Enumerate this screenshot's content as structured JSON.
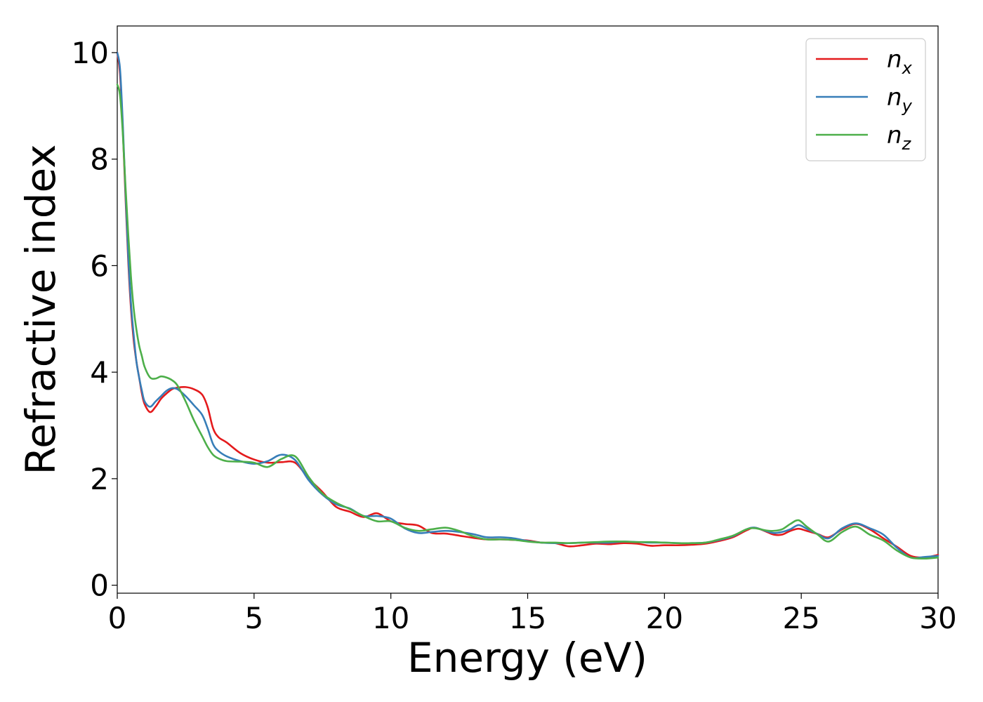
{
  "chart_data": {
    "type": "line",
    "title": "",
    "xlabel": "Energy (eV)",
    "ylabel": "Refractive index",
    "xlim": [
      0,
      30
    ],
    "ylim": [
      -0.15,
      10.5
    ],
    "xticks": [
      0,
      5,
      10,
      15,
      20,
      25,
      30
    ],
    "yticks": [
      0,
      2,
      4,
      6,
      8,
      10
    ],
    "grid": false,
    "legend_position": "top-right",
    "series": [
      {
        "name": "n",
        "subscript": "x",
        "color": "#e41a1c",
        "x": [
          0,
          0.1,
          0.2,
          0.3,
          0.4,
          0.5,
          0.6,
          0.7,
          0.8,
          0.9,
          1.0,
          1.2,
          1.4,
          1.6,
          1.8,
          2.0,
          2.2,
          2.5,
          2.8,
          3.1,
          3.3,
          3.5,
          3.7,
          4.0,
          4.5,
          5.0,
          5.5,
          6.0,
          6.5,
          7.0,
          7.5,
          8.0,
          8.5,
          9.0,
          9.5,
          10.0,
          10.5,
          11.0,
          11.5,
          12.0,
          12.5,
          13.0,
          13.5,
          14.0,
          14.5,
          15.0,
          15.5,
          16.0,
          16.5,
          17.0,
          17.5,
          18.0,
          18.5,
          19.0,
          19.5,
          20.0,
          20.5,
          21.0,
          21.5,
          22.0,
          22.5,
          23.0,
          23.3,
          23.7,
          24.0,
          24.3,
          24.6,
          24.9,
          25.2,
          25.6,
          26.0,
          26.5,
          27.0,
          27.5,
          28.0,
          28.5,
          29.0,
          29.5,
          30.0
        ],
        "y": [
          10.0,
          9.6,
          8.6,
          7.3,
          6.1,
          5.2,
          4.6,
          4.2,
          3.9,
          3.6,
          3.4,
          3.25,
          3.35,
          3.5,
          3.6,
          3.68,
          3.71,
          3.72,
          3.68,
          3.58,
          3.35,
          2.95,
          2.78,
          2.68,
          2.48,
          2.36,
          2.3,
          2.31,
          2.3,
          2.0,
          1.75,
          1.47,
          1.38,
          1.28,
          1.35,
          1.2,
          1.15,
          1.12,
          0.98,
          0.97,
          0.93,
          0.89,
          0.86,
          0.86,
          0.85,
          0.84,
          0.8,
          0.79,
          0.73,
          0.75,
          0.78,
          0.77,
          0.79,
          0.78,
          0.74,
          0.75,
          0.75,
          0.76,
          0.78,
          0.83,
          0.9,
          1.03,
          1.08,
          1.01,
          0.95,
          0.95,
          1.02,
          1.06,
          1.02,
          0.96,
          0.9,
          1.05,
          1.15,
          1.05,
          0.88,
          0.72,
          0.55,
          0.52,
          0.57
        ]
      },
      {
        "name": "n",
        "subscript": "y",
        "color": "#377eb8",
        "x": [
          0,
          0.1,
          0.2,
          0.3,
          0.4,
          0.5,
          0.6,
          0.7,
          0.8,
          0.9,
          1.0,
          1.2,
          1.4,
          1.6,
          1.8,
          2.0,
          2.2,
          2.5,
          2.8,
          3.1,
          3.3,
          3.5,
          3.7,
          4.0,
          4.5,
          5.0,
          5.5,
          6.0,
          6.5,
          7.0,
          7.5,
          8.0,
          8.5,
          9.0,
          9.5,
          10.0,
          10.5,
          11.0,
          11.5,
          12.0,
          12.5,
          13.0,
          13.5,
          14.0,
          14.5,
          15.0,
          15.5,
          16.0,
          16.5,
          17.0,
          17.5,
          18.0,
          18.5,
          19.0,
          19.5,
          20.0,
          20.5,
          21.0,
          21.5,
          22.0,
          22.5,
          23.0,
          23.3,
          23.7,
          24.0,
          24.3,
          24.6,
          24.9,
          25.2,
          25.6,
          26.0,
          26.5,
          27.0,
          27.5,
          28.0,
          28.5,
          29.0,
          29.5,
          30.0
        ],
        "y": [
          10.0,
          9.7,
          8.7,
          7.4,
          6.2,
          5.3,
          4.7,
          4.2,
          3.9,
          3.65,
          3.45,
          3.35,
          3.45,
          3.55,
          3.65,
          3.7,
          3.68,
          3.55,
          3.38,
          3.2,
          2.95,
          2.65,
          2.52,
          2.42,
          2.33,
          2.28,
          2.33,
          2.45,
          2.35,
          1.97,
          1.7,
          1.52,
          1.44,
          1.3,
          1.3,
          1.25,
          1.07,
          0.98,
          1.0,
          1.02,
          1.0,
          0.96,
          0.9,
          0.9,
          0.88,
          0.83,
          0.8,
          0.79,
          0.79,
          0.8,
          0.8,
          0.8,
          0.82,
          0.81,
          0.8,
          0.8,
          0.79,
          0.79,
          0.8,
          0.85,
          0.92,
          1.05,
          1.08,
          1.02,
          0.98,
          1.0,
          1.05,
          1.13,
          1.06,
          0.96,
          0.88,
          1.07,
          1.16,
          1.07,
          0.95,
          0.7,
          0.52,
          0.53,
          0.55
        ]
      },
      {
        "name": "n",
        "subscript": "z",
        "color": "#4daf4a",
        "x": [
          0,
          0.1,
          0.2,
          0.3,
          0.4,
          0.5,
          0.6,
          0.7,
          0.8,
          0.9,
          1.0,
          1.2,
          1.4,
          1.6,
          1.8,
          2.0,
          2.2,
          2.5,
          2.8,
          3.1,
          3.3,
          3.5,
          3.7,
          4.0,
          4.5,
          5.0,
          5.5,
          6.0,
          6.5,
          7.0,
          7.5,
          8.0,
          8.5,
          9.0,
          9.5,
          10.0,
          10.5,
          11.0,
          11.5,
          12.0,
          12.5,
          13.0,
          13.5,
          14.0,
          14.5,
          15.0,
          15.5,
          16.0,
          16.5,
          17.0,
          17.5,
          18.0,
          18.5,
          19.0,
          19.5,
          20.0,
          20.5,
          21.0,
          21.5,
          22.0,
          22.5,
          23.0,
          23.3,
          23.7,
          24.0,
          24.3,
          24.6,
          24.9,
          25.2,
          25.6,
          26.0,
          26.5,
          27.0,
          27.5,
          28.0,
          28.5,
          29.0,
          29.5,
          30.0
        ],
        "y": [
          9.4,
          9.2,
          8.5,
          7.5,
          6.6,
          5.8,
          5.2,
          4.8,
          4.5,
          4.3,
          4.1,
          3.9,
          3.88,
          3.92,
          3.9,
          3.85,
          3.75,
          3.45,
          3.1,
          2.8,
          2.6,
          2.45,
          2.38,
          2.33,
          2.32,
          2.3,
          2.22,
          2.37,
          2.42,
          2.03,
          1.72,
          1.55,
          1.43,
          1.3,
          1.2,
          1.2,
          1.08,
          1.02,
          1.05,
          1.08,
          1.02,
          0.92,
          0.86,
          0.86,
          0.85,
          0.82,
          0.8,
          0.8,
          0.79,
          0.8,
          0.81,
          0.82,
          0.82,
          0.81,
          0.81,
          0.8,
          0.79,
          0.79,
          0.8,
          0.86,
          0.93,
          1.05,
          1.07,
          1.03,
          1.02,
          1.05,
          1.15,
          1.22,
          1.1,
          0.95,
          0.82,
          1.0,
          1.1,
          0.95,
          0.84,
          0.65,
          0.52,
          0.5,
          0.52
        ]
      }
    ]
  }
}
